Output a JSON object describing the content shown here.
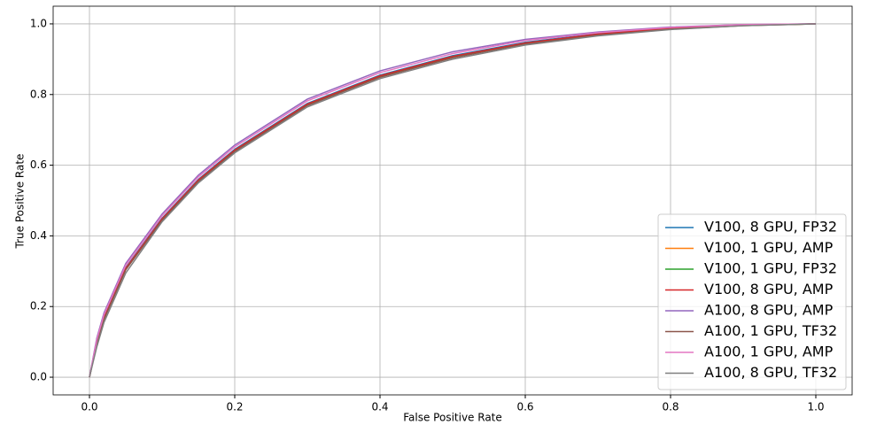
{
  "chart_data": {
    "type": "line",
    "xlabel": "False Positive Rate",
    "ylabel": "True Positive Rate",
    "x": [
      0,
      0.01,
      0.02,
      0.05,
      0.1,
      0.15,
      0.2,
      0.3,
      0.4,
      0.5,
      0.6,
      0.7,
      0.8,
      0.9,
      1.0
    ],
    "series": [
      {
        "name": "V100, 8 GPU, FP32",
        "color": "#1f77b4",
        "values": [
          0,
          0.1,
          0.17,
          0.31,
          0.45,
          0.56,
          0.645,
          0.775,
          0.855,
          0.91,
          0.948,
          0.972,
          0.988,
          0.997,
          1
        ]
      },
      {
        "name": "V100, 1 GPU, AMP",
        "color": "#ff7f0e",
        "values": [
          0,
          0.095,
          0.165,
          0.305,
          0.445,
          0.555,
          0.64,
          0.77,
          0.85,
          0.905,
          0.944,
          0.969,
          0.986,
          0.996,
          1
        ]
      },
      {
        "name": "V100, 1 GPU, FP32",
        "color": "#2ca02c",
        "values": [
          0,
          0.096,
          0.166,
          0.306,
          0.446,
          0.556,
          0.641,
          0.771,
          0.851,
          0.906,
          0.945,
          0.97,
          0.987,
          0.996,
          1
        ]
      },
      {
        "name": "V100, 8 GPU, AMP",
        "color": "#d62728",
        "values": [
          0,
          0.098,
          0.168,
          0.308,
          0.448,
          0.558,
          0.643,
          0.773,
          0.853,
          0.908,
          0.946,
          0.971,
          0.987,
          0.997,
          1
        ]
      },
      {
        "name": "A100, 8 GPU, AMP",
        "color": "#9467bd",
        "values": [
          0,
          0.11,
          0.182,
          0.322,
          0.462,
          0.572,
          0.657,
          0.787,
          0.867,
          0.921,
          0.956,
          0.977,
          0.991,
          0.998,
          1
        ]
      },
      {
        "name": "A100, 1 GPU, TF32",
        "color": "#8c564b",
        "values": [
          0,
          0.094,
          0.164,
          0.304,
          0.444,
          0.554,
          0.639,
          0.769,
          0.849,
          0.904,
          0.943,
          0.968,
          0.985,
          0.995,
          1
        ]
      },
      {
        "name": "A100, 1 GPU, AMP",
        "color": "#e377c2",
        "values": [
          0,
          0.105,
          0.177,
          0.317,
          0.457,
          0.567,
          0.652,
          0.782,
          0.862,
          0.916,
          0.953,
          0.975,
          0.99,
          0.998,
          1
        ]
      },
      {
        "name": "A100, 8 GPU, TF32",
        "color": "#7f7f7f",
        "values": [
          0,
          0.085,
          0.155,
          0.295,
          0.44,
          0.55,
          0.635,
          0.765,
          0.845,
          0.9,
          0.94,
          0.966,
          0.984,
          0.995,
          1
        ]
      }
    ],
    "xlim": [
      -0.05,
      1.05
    ],
    "ylim": [
      -0.05,
      1.05
    ],
    "xticks": [
      {
        "value": 0,
        "label": "0.0"
      },
      0.2,
      0.4,
      0.6,
      0.8,
      {
        "value": 1,
        "label": "1.0"
      }
    ],
    "yticks": [
      {
        "value": 0,
        "label": "0.0"
      },
      0.2,
      0.4,
      0.6,
      0.8,
      {
        "value": 1,
        "label": "1.0"
      }
    ],
    "grid": true,
    "legend": "lower right"
  }
}
